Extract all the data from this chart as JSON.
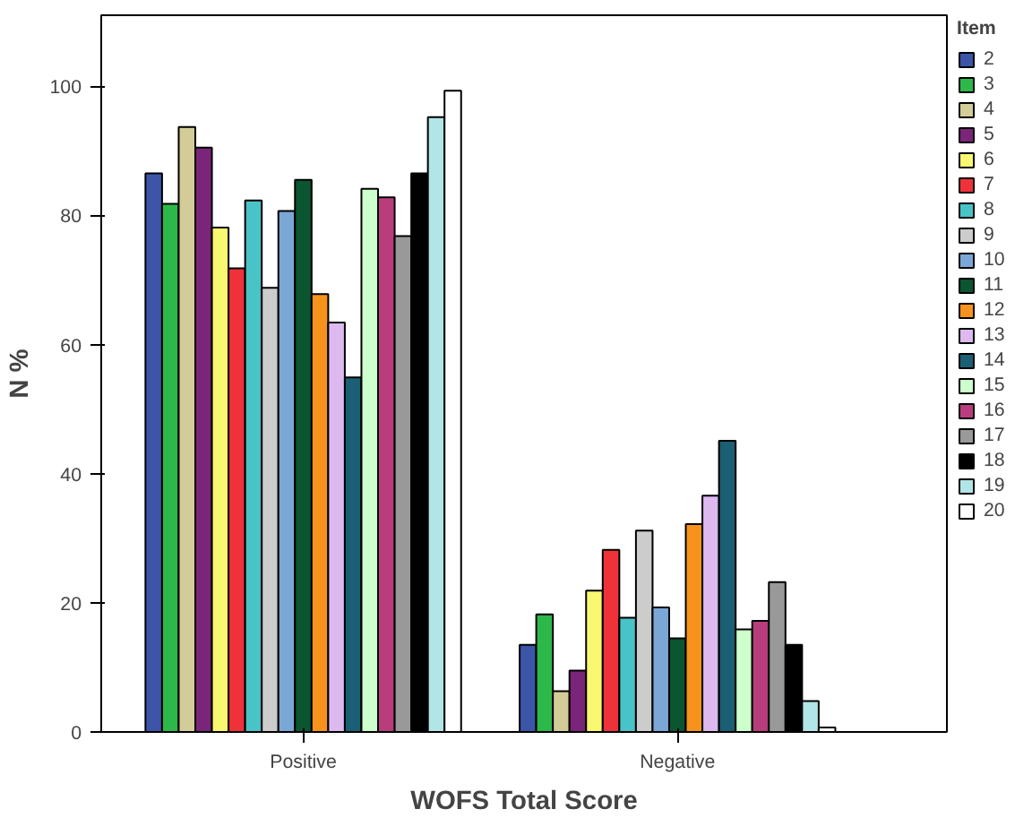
{
  "chart_data": {
    "type": "bar",
    "xlabel": "WOFS Total Score",
    "ylabel": "N %",
    "legend_title": "Item",
    "categories": [
      "Positive",
      "Negative"
    ],
    "ylim": [
      0,
      111
    ],
    "yticks": [
      0,
      20,
      40,
      60,
      80,
      100
    ],
    "grid": false,
    "legend": "right",
    "series": [
      {
        "name": "2",
        "color": "#3d55a8",
        "values": [
          86.5,
          13.5
        ]
      },
      {
        "name": "3",
        "color": "#2db84a",
        "values": [
          81.8,
          18.2
        ]
      },
      {
        "name": "4",
        "color": "#d3cc98",
        "values": [
          93.7,
          6.3
        ]
      },
      {
        "name": "5",
        "color": "#7a2579",
        "values": [
          90.5,
          9.5
        ]
      },
      {
        "name": "6",
        "color": "#f9f871",
        "values": [
          78.1,
          21.9
        ]
      },
      {
        "name": "7",
        "color": "#ef3239",
        "values": [
          71.8,
          28.2
        ]
      },
      {
        "name": "8",
        "color": "#48c3c7",
        "values": [
          82.3,
          17.7
        ]
      },
      {
        "name": "9",
        "color": "#cccccc",
        "values": [
          68.8,
          31.2
        ]
      },
      {
        "name": "10",
        "color": "#7ba7d7",
        "values": [
          80.7,
          19.3
        ]
      },
      {
        "name": "11",
        "color": "#0b5530",
        "values": [
          85.5,
          14.5
        ]
      },
      {
        "name": "12",
        "color": "#f7931d",
        "values": [
          67.8,
          32.2
        ]
      },
      {
        "name": "13",
        "color": "#dcb9ef",
        "values": [
          63.4,
          36.6
        ]
      },
      {
        "name": "14",
        "color": "#1b5f74",
        "values": [
          54.9,
          45.1
        ]
      },
      {
        "name": "15",
        "color": "#ccffcc",
        "values": [
          84.1,
          15.9
        ]
      },
      {
        "name": "16",
        "color": "#b93d7d",
        "values": [
          82.8,
          17.2
        ]
      },
      {
        "name": "17",
        "color": "#999999",
        "values": [
          76.8,
          23.2
        ]
      },
      {
        "name": "18",
        "color": "#000000",
        "values": [
          86.5,
          13.5
        ]
      },
      {
        "name": "19",
        "color": "#b2e5e5",
        "values": [
          95.2,
          4.8
        ]
      },
      {
        "name": "20",
        "color": "#ffffff",
        "values": [
          99.3,
          0.7
        ]
      }
    ]
  }
}
